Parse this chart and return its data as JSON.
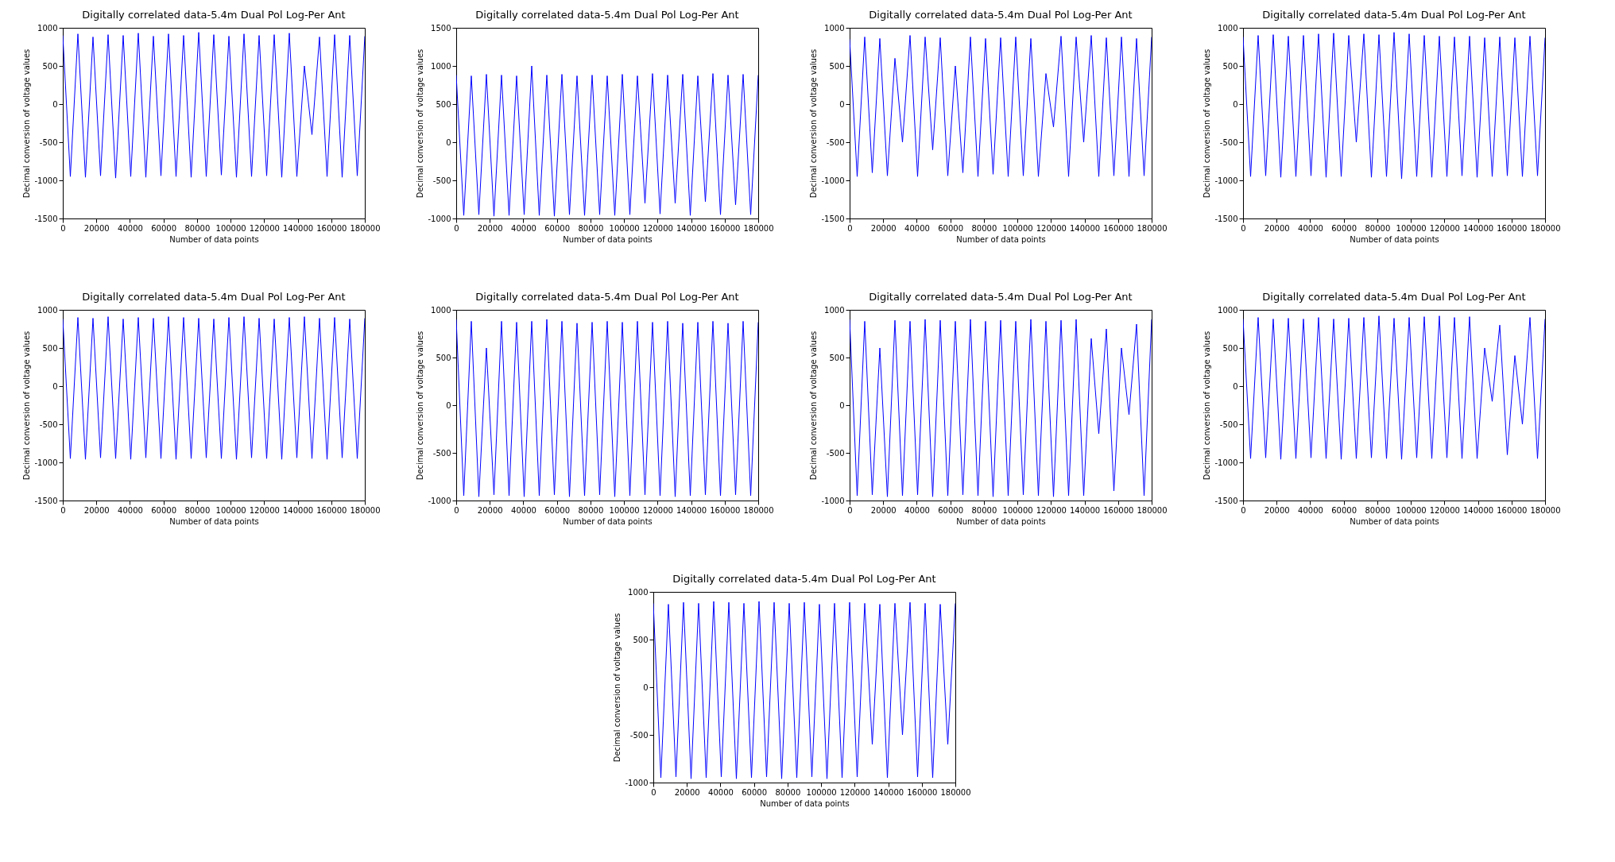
{
  "chart_data": [
    {
      "type": "line",
      "title": "Digitally correlated data-5.4m Dual Pol Log-Per Ant",
      "xlabel": "Number of data points",
      "ylabel": "Decimal conversion of voltage values",
      "xlim": [
        0,
        180000
      ],
      "xticks": [
        0,
        20000,
        40000,
        60000,
        80000,
        100000,
        120000,
        140000,
        160000,
        180000
      ],
      "ylim": [
        -1500,
        1000
      ],
      "yticks": [
        -1500,
        -1000,
        -500,
        0,
        500,
        1000
      ],
      "grid": false,
      "x": [
        0,
        4500,
        9000,
        13500,
        18000,
        22500,
        27000,
        31500,
        36000,
        40500,
        45000,
        49500,
        54000,
        58500,
        63000,
        67500,
        72000,
        76500,
        81000,
        85500,
        90000,
        94500,
        99000,
        103500,
        108000,
        112500,
        117000,
        121500,
        126000,
        130500,
        135000,
        139500,
        144000,
        148500,
        153000,
        157500,
        162000,
        166500,
        171000,
        175500,
        180000
      ],
      "series": [
        {
          "color": "#0000ff",
          "values": [
            900,
            -950,
            920,
            -960,
            880,
            -940,
            910,
            -970,
            900,
            -950,
            930,
            -960,
            890,
            -940,
            920,
            -950,
            900,
            -960,
            940,
            -950,
            910,
            -930,
            890,
            -960,
            920,
            -950,
            900,
            -940,
            910,
            -960,
            930,
            -950,
            500,
            -400,
            880,
            -950,
            910,
            -960,
            900,
            -940,
            890
          ]
        }
      ]
    },
    {
      "type": "line",
      "title": "Digitally correlated data-5.4m Dual Pol Log-Per Ant",
      "xlabel": "Number of data points",
      "ylabel": "Decimal conversion of voltage values",
      "xlim": [
        0,
        180000
      ],
      "xticks": [
        0,
        20000,
        40000,
        60000,
        80000,
        100000,
        120000,
        140000,
        160000,
        180000
      ],
      "ylim": [
        -1000,
        1500
      ],
      "yticks": [
        -1000,
        -500,
        0,
        500,
        1000,
        1500
      ],
      "grid": false,
      "x": [
        0,
        4500,
        9000,
        13500,
        18000,
        22500,
        27000,
        31500,
        36000,
        40500,
        45000,
        49500,
        54000,
        58500,
        63000,
        67500,
        72000,
        76500,
        81000,
        85500,
        90000,
        94500,
        99000,
        103500,
        108000,
        112500,
        117000,
        121500,
        126000,
        130500,
        135000,
        139500,
        144000,
        148500,
        153000,
        157500,
        162000,
        166500,
        171000,
        175500,
        180000
      ],
      "series": [
        {
          "color": "#0000ff",
          "values": [
            880,
            -960,
            870,
            -950,
            890,
            -970,
            880,
            -960,
            870,
            -950,
            1000,
            -960,
            880,
            -970,
            890,
            -950,
            870,
            -960,
            880,
            -950,
            870,
            -960,
            890,
            -950,
            870,
            -800,
            900,
            -940,
            880,
            -800,
            890,
            -960,
            870,
            -780,
            900,
            -950,
            880,
            -820,
            890,
            -950,
            880
          ]
        }
      ]
    },
    {
      "type": "line",
      "title": "Digitally correlated data-5.4m Dual Pol Log-Per Ant",
      "xlabel": "Number of data points",
      "ylabel": "Decimal conversion of voltage values",
      "xlim": [
        0,
        180000
      ],
      "xticks": [
        0,
        20000,
        40000,
        60000,
        80000,
        100000,
        120000,
        140000,
        160000,
        180000
      ],
      "ylim": [
        -1500,
        1000
      ],
      "yticks": [
        -1500,
        -1000,
        -500,
        0,
        500,
        1000
      ],
      "grid": false,
      "x": [
        0,
        4500,
        9000,
        13500,
        18000,
        22500,
        27000,
        31500,
        36000,
        40500,
        45000,
        49500,
        54000,
        58500,
        63000,
        67500,
        72000,
        76500,
        81000,
        85500,
        90000,
        94500,
        99000,
        103500,
        108000,
        112500,
        117000,
        121500,
        126000,
        130500,
        135000,
        139500,
        144000,
        148500,
        153000,
        157500,
        162000,
        166500,
        171000,
        175500,
        180000
      ],
      "series": [
        {
          "color": "#0000ff",
          "values": [
            850,
            -950,
            880,
            -900,
            860,
            -940,
            600,
            -500,
            900,
            -950,
            880,
            -600,
            870,
            -940,
            500,
            -900,
            880,
            -950,
            860,
            -920,
            870,
            -950,
            880,
            -940,
            860,
            -950,
            400,
            -300,
            890,
            -950,
            880,
            -500,
            900,
            -950,
            870,
            -940,
            880,
            -950,
            860,
            -940,
            880
          ]
        }
      ]
    },
    {
      "type": "line",
      "title": "Digitally correlated data-5.4m Dual Pol Log-Per Ant",
      "xlabel": "Number of data points",
      "ylabel": "Decimal conversion of voltage values",
      "xlim": [
        0,
        180000
      ],
      "xticks": [
        0,
        20000,
        40000,
        60000,
        80000,
        100000,
        120000,
        140000,
        160000,
        180000
      ],
      "ylim": [
        -1500,
        1000
      ],
      "yticks": [
        -1500,
        -1000,
        -500,
        0,
        500,
        1000
      ],
      "grid": false,
      "x": [
        0,
        4500,
        9000,
        13500,
        18000,
        22500,
        27000,
        31500,
        36000,
        40500,
        45000,
        49500,
        54000,
        58500,
        63000,
        67500,
        72000,
        76500,
        81000,
        85500,
        90000,
        94500,
        99000,
        103500,
        108000,
        112500,
        117000,
        121500,
        126000,
        130500,
        135000,
        139500,
        144000,
        148500,
        153000,
        157500,
        162000,
        166500,
        171000,
        175500,
        180000
      ],
      "series": [
        {
          "color": "#0000ff",
          "values": [
            880,
            -950,
            900,
            -940,
            910,
            -960,
            890,
            -950,
            900,
            -940,
            920,
            -960,
            930,
            -950,
            900,
            -500,
            920,
            -960,
            910,
            -950,
            940,
            -980,
            920,
            -950,
            900,
            -960,
            890,
            -950,
            880,
            -940,
            890,
            -960,
            870,
            -950,
            880,
            -940,
            870,
            -950,
            890,
            -940,
            870
          ]
        }
      ]
    },
    {
      "type": "line",
      "title": "Digitally correlated data-5.4m Dual Pol Log-Per Ant",
      "xlabel": "Number of data points",
      "ylabel": "Decimal conversion of voltage values",
      "xlim": [
        0,
        180000
      ],
      "xticks": [
        0,
        20000,
        40000,
        60000,
        80000,
        100000,
        120000,
        140000,
        160000,
        180000
      ],
      "ylim": [
        -1500,
        1000
      ],
      "yticks": [
        -1500,
        -1000,
        -500,
        0,
        500,
        1000
      ],
      "grid": false,
      "x": [
        0,
        4500,
        9000,
        13500,
        18000,
        22500,
        27000,
        31500,
        36000,
        40500,
        45000,
        49500,
        54000,
        58500,
        63000,
        67500,
        72000,
        76500,
        81000,
        85500,
        90000,
        94500,
        99000,
        103500,
        108000,
        112500,
        117000,
        121500,
        126000,
        130500,
        135000,
        139500,
        144000,
        148500,
        153000,
        157500,
        162000,
        166500,
        171000,
        175500,
        180000
      ],
      "series": [
        {
          "color": "#0000ff",
          "values": [
            880,
            -950,
            900,
            -960,
            890,
            -940,
            910,
            -950,
            880,
            -960,
            900,
            -940,
            890,
            -950,
            910,
            -960,
            900,
            -950,
            890,
            -940,
            880,
            -950,
            900,
            -960,
            910,
            -940,
            890,
            -950,
            880,
            -960,
            900,
            -940,
            910,
            -950,
            890,
            -960,
            900,
            -940,
            880,
            -950,
            890
          ]
        }
      ]
    },
    {
      "type": "line",
      "title": "Digitally correlated data-5.4m Dual Pol Log-Per Ant",
      "xlabel": "Number of data points",
      "ylabel": "Decimal conversion of voltage values",
      "xlim": [
        0,
        180000
      ],
      "xticks": [
        0,
        20000,
        40000,
        60000,
        80000,
        100000,
        120000,
        140000,
        160000,
        180000
      ],
      "ylim": [
        -1000,
        1000
      ],
      "yticks": [
        -1000,
        -500,
        0,
        500,
        1000
      ],
      "grid": false,
      "x": [
        0,
        4500,
        9000,
        13500,
        18000,
        22500,
        27000,
        31500,
        36000,
        40500,
        45000,
        49500,
        54000,
        58500,
        63000,
        67500,
        72000,
        76500,
        81000,
        85500,
        90000,
        94500,
        99000,
        103500,
        108000,
        112500,
        117000,
        121500,
        126000,
        130500,
        135000,
        139500,
        144000,
        148500,
        153000,
        157500,
        162000,
        166500,
        171000,
        175500,
        180000
      ],
      "series": [
        {
          "color": "#0000ff",
          "values": [
            900,
            -950,
            880,
            -960,
            600,
            -940,
            880,
            -950,
            870,
            -960,
            880,
            -950,
            900,
            -940,
            880,
            -960,
            860,
            -950,
            870,
            -940,
            880,
            -960,
            870,
            -950,
            880,
            -940,
            870,
            -950,
            880,
            -960,
            860,
            -950,
            870,
            -940,
            880,
            -950,
            860,
            -940,
            880,
            -950,
            870
          ]
        }
      ]
    },
    {
      "type": "line",
      "title": "Digitally correlated data-5.4m Dual Pol Log-Per Ant",
      "xlabel": "Number of data points",
      "ylabel": "Decimal conversion of voltage values",
      "xlim": [
        0,
        180000
      ],
      "xticks": [
        0,
        20000,
        40000,
        60000,
        80000,
        100000,
        120000,
        140000,
        160000,
        180000
      ],
      "ylim": [
        -1000,
        1000
      ],
      "yticks": [
        -1000,
        -500,
        0,
        500,
        1000
      ],
      "grid": false,
      "x": [
        0,
        4500,
        9000,
        13500,
        18000,
        22500,
        27000,
        31500,
        36000,
        40500,
        45000,
        49500,
        54000,
        58500,
        63000,
        67500,
        72000,
        76500,
        81000,
        85500,
        90000,
        94500,
        99000,
        103500,
        108000,
        112500,
        117000,
        121500,
        126000,
        130500,
        135000,
        139500,
        144000,
        148500,
        153000,
        157500,
        162000,
        166500,
        171000,
        175500,
        180000
      ],
      "series": [
        {
          "color": "#0000ff",
          "values": [
            900,
            -950,
            880,
            -940,
            600,
            -960,
            890,
            -950,
            880,
            -940,
            900,
            -960,
            890,
            -950,
            880,
            -940,
            900,
            -950,
            880,
            -960,
            890,
            -950,
            880,
            -940,
            900,
            -950,
            880,
            -960,
            890,
            -950,
            900,
            -950,
            700,
            -300,
            800,
            -900,
            600,
            -100,
            850,
            -950,
            900
          ]
        }
      ]
    },
    {
      "type": "line",
      "title": "Digitally correlated data-5.4m Dual Pol Log-Per Ant",
      "xlabel": "Number of data points",
      "ylabel": "Decimal conversion of voltage values",
      "xlim": [
        0,
        180000
      ],
      "xticks": [
        0,
        20000,
        40000,
        60000,
        80000,
        100000,
        120000,
        140000,
        160000,
        180000
      ],
      "ylim": [
        -1500,
        1000
      ],
      "yticks": [
        -1500,
        -1000,
        -500,
        0,
        500,
        1000
      ],
      "grid": false,
      "x": [
        0,
        4500,
        9000,
        13500,
        18000,
        22500,
        27000,
        31500,
        36000,
        40500,
        45000,
        49500,
        54000,
        58500,
        63000,
        67500,
        72000,
        76500,
        81000,
        85500,
        90000,
        94500,
        99000,
        103500,
        108000,
        112500,
        117000,
        121500,
        126000,
        130500,
        135000,
        139500,
        144000,
        148500,
        153000,
        157500,
        162000,
        166500,
        171000,
        175500,
        180000
      ],
      "series": [
        {
          "color": "#0000ff",
          "values": [
            880,
            -950,
            900,
            -940,
            880,
            -960,
            890,
            -950,
            880,
            -940,
            900,
            -950,
            880,
            -960,
            890,
            -950,
            900,
            -940,
            920,
            -950,
            890,
            -960,
            900,
            -940,
            910,
            -950,
            920,
            -940,
            900,
            -950,
            910,
            -950,
            500,
            -200,
            800,
            -900,
            400,
            -500,
            900,
            -950,
            880
          ]
        }
      ]
    },
    {
      "type": "line",
      "title": "Digitally correlated data-5.4m Dual Pol Log-Per Ant",
      "xlabel": "Number of data points",
      "ylabel": "Decimal conversion of voltage values",
      "xlim": [
        0,
        180000
      ],
      "xticks": [
        0,
        20000,
        40000,
        60000,
        80000,
        100000,
        120000,
        140000,
        160000,
        180000
      ],
      "ylim": [
        -1000,
        1000
      ],
      "yticks": [
        -1000,
        -500,
        0,
        500,
        1000
      ],
      "grid": false,
      "x": [
        0,
        4500,
        9000,
        13500,
        18000,
        22500,
        27000,
        31500,
        36000,
        40500,
        45000,
        49500,
        54000,
        58500,
        63000,
        67500,
        72000,
        76500,
        81000,
        85500,
        90000,
        94500,
        99000,
        103500,
        108000,
        112500,
        117000,
        121500,
        126000,
        130500,
        135000,
        139500,
        144000,
        148500,
        153000,
        157500,
        162000,
        166500,
        171000,
        175500,
        180000
      ],
      "series": [
        {
          "color": "#0000ff",
          "values": [
            880,
            -950,
            870,
            -940,
            890,
            -960,
            880,
            -950,
            900,
            -940,
            890,
            -960,
            880,
            -950,
            900,
            -940,
            890,
            -960,
            880,
            -950,
            890,
            -940,
            870,
            -960,
            880,
            -950,
            890,
            -940,
            880,
            -600,
            870,
            -950,
            880,
            -500,
            890,
            -940,
            880,
            -950,
            870,
            -600,
            880
          ]
        }
      ]
    }
  ]
}
